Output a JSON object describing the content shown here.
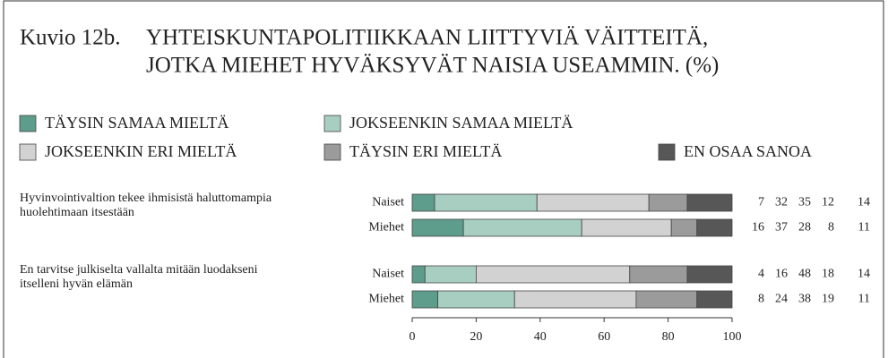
{
  "chart_data": {
    "type": "stacked-barh",
    "title_label": "Kuvio 12b.",
    "title": [
      "YHTEISKUNTAPOLITIIKKAAN LIITTYVIÄ VÄITTEITÄ,",
      "JOTKA MIEHET HYVÄKSYVÄT NAISIA USEAMMIN. (%)"
    ],
    "groups": [
      [
        "Hyvinvointivaltion tekee ihmisistä haluttomampia",
        "huolehtimaan itsestään"
      ],
      [
        "En tarvitse julkiselta vallalta mitään luodakseni",
        "itselleni hyvän elämän"
      ]
    ],
    "categories": [
      "Naiset",
      "Miehet",
      "Naiset",
      "Miehet"
    ],
    "series": [
      {
        "name": "TÄYSIN SAMAA MIELTÄ",
        "color": "#5e9c8c",
        "values": [
          7,
          16,
          4,
          8
        ]
      },
      {
        "name": "JOKSEENKIN SAMAA MIELTÄ",
        "color": "#a8cdc1",
        "values": [
          32,
          37,
          16,
          24
        ]
      },
      {
        "name": "JOKSEENKIN ERI MIELTÄ",
        "color": "#d2d2d2",
        "values": [
          35,
          28,
          48,
          38
        ]
      },
      {
        "name": "TÄYSIN ERI MIELTÄ",
        "color": "#9b9b9b",
        "values": [
          12,
          8,
          18,
          19
        ]
      },
      {
        "name": "EN OSAA SANOA",
        "color": "#575757",
        "values": [
          14,
          11,
          14,
          11
        ]
      }
    ],
    "xlim": [
      0,
      100
    ],
    "xticks": [
      0,
      20,
      40,
      60,
      80,
      100
    ]
  }
}
